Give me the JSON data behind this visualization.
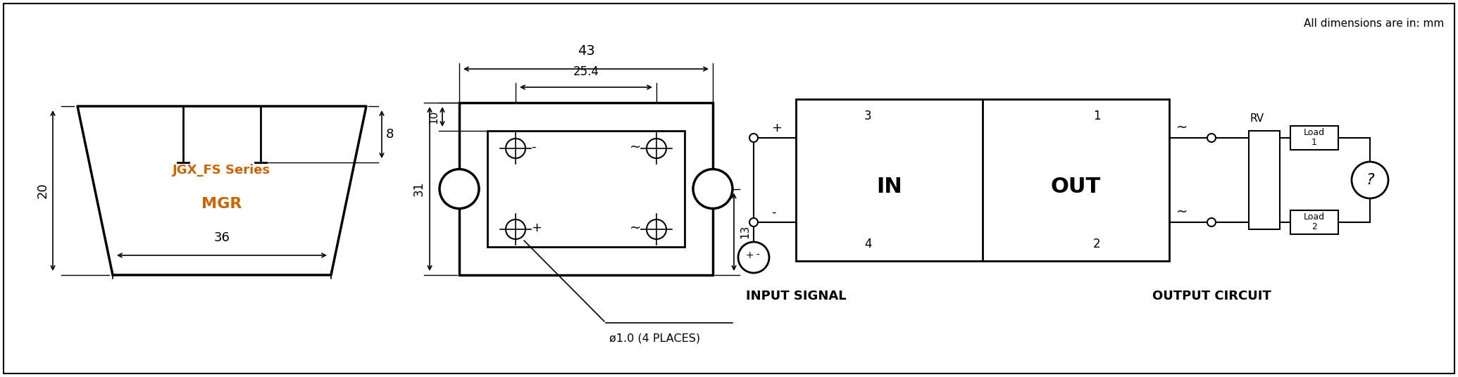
{
  "bg_color": "#ffffff",
  "line_color": "#000000",
  "label_color": "#cc6600",
  "fig_width": 20.7,
  "fig_height": 5.36,
  "title_text": "All dimensions are in: mm",
  "mgr_text": "MGR",
  "series_text": "JGX_FS Series",
  "dim_36": "36",
  "dim_20": "20",
  "dim_8": "8",
  "dim_43": "43",
  "dim_25_4": "25.4",
  "dim_31": "31",
  "dim_10": "10",
  "dim_13": "13",
  "hole_label": "ø1.0 (4 PLACES)",
  "input_signal": "INPUT SIGNAL",
  "output_circuit": "OUTPUT CIRCUIT",
  "in_label": "IN",
  "out_label": "OUT",
  "rv_label": "RV",
  "pin3": "3",
  "pin4": "4",
  "pin1": "1",
  "pin2": "2",
  "plus": "+",
  "minus": "-",
  "tilde": "~",
  "load1": "Load\n1",
  "load2": "Load\n2"
}
